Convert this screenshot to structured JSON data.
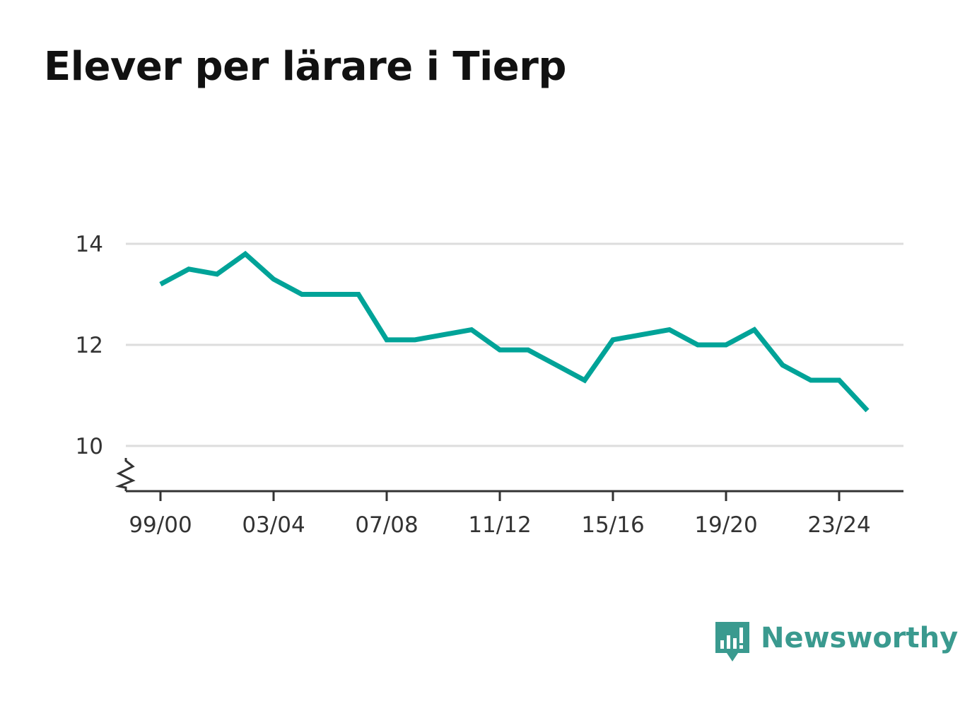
{
  "title": "Elever per lärare i Tierp",
  "brand": {
    "name": "Newsworthy",
    "icon": "newsworthy-logo-icon",
    "color": "#3a9a8f"
  },
  "chart_data": {
    "type": "line",
    "title": "Elever per lärare i Tierp",
    "xlabel": "",
    "ylabel": "",
    "x": [
      "99/00",
      "00/01",
      "01/02",
      "02/03",
      "03/04",
      "04/05",
      "05/06",
      "06/07",
      "07/08",
      "08/09",
      "09/10",
      "10/11",
      "11/12",
      "12/13",
      "13/14",
      "14/15",
      "15/16",
      "16/17",
      "17/18",
      "18/19",
      "19/20",
      "20/21",
      "21/22",
      "22/23",
      "23/24",
      "24/25"
    ],
    "xticks": [
      "99/00",
      "03/04",
      "07/08",
      "11/12",
      "15/16",
      "19/20",
      "23/24"
    ],
    "yticks": [
      10,
      12,
      14
    ],
    "ylim": [
      9.1,
      14.3
    ],
    "y_axis_break": true,
    "grid": true,
    "series": [
      {
        "color": "#00a398",
        "values": [
          13.2,
          13.5,
          13.4,
          13.8,
          13.3,
          13.0,
          13.0,
          13.0,
          12.1,
          12.1,
          12.2,
          12.3,
          11.9,
          11.9,
          11.6,
          11.3,
          12.1,
          12.2,
          12.3,
          12.0,
          12.0,
          12.3,
          11.6,
          11.3,
          11.3,
          10.7
        ]
      }
    ]
  }
}
